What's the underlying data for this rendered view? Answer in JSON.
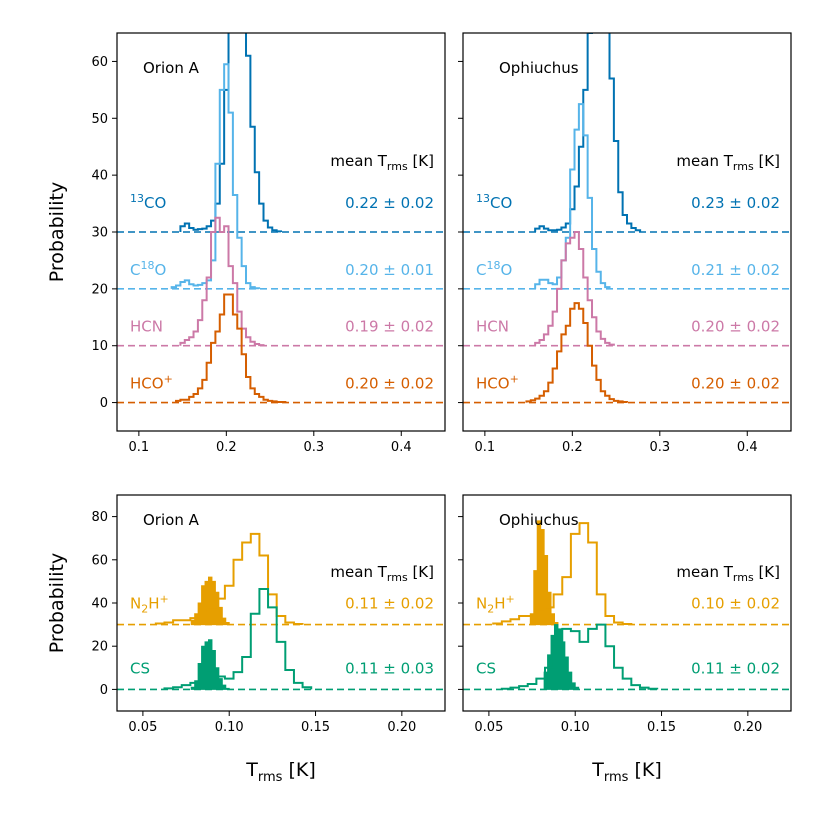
{
  "chart_data": [
    {
      "type": "histogram",
      "id": "top-left",
      "panel_label": "Orion A",
      "ylabel": "Probability",
      "xlim": [
        0.075,
        0.45
      ],
      "ylim": [
        -5,
        65
      ],
      "xticks": [
        0.1,
        0.2,
        0.3,
        0.4
      ],
      "xtick_labels": [
        "0.1",
        "0.2",
        "0.3",
        "0.4"
      ],
      "yticks": [
        0,
        10,
        20,
        30,
        40,
        50,
        60
      ],
      "ytick_labels": [
        "0",
        "10",
        "20",
        "30",
        "40",
        "50",
        "60"
      ],
      "mean_header": {
        "prefix": "mean T",
        "sub": "rms",
        "suffix": " [K]"
      },
      "series": [
        {
          "name": "13CO",
          "label_sup": "13",
          "label_main": "CO",
          "color": "#0072B2",
          "offset": 30,
          "mean_text": "0.22 ± 0.02",
          "style": "step",
          "centers": [
            0.15,
            0.155,
            0.16,
            0.165,
            0.17,
            0.175,
            0.18,
            0.185,
            0.19,
            0.195,
            0.2,
            0.205,
            0.21,
            0.215,
            0.22,
            0.225,
            0.23,
            0.235,
            0.24,
            0.245,
            0.25,
            0.255,
            0.26
          ],
          "heights": [
            1.0,
            1.5,
            0.7,
            0.4,
            0.5,
            0.6,
            1.0,
            2.0,
            5.0,
            12.0,
            25.0,
            45.0,
            61.5,
            60.0,
            45.0,
            31.0,
            18.5,
            10.5,
            5.0,
            2.0,
            0.8,
            0.3,
            0.1
          ]
        },
        {
          "name": "C18O",
          "label_sup": "18",
          "label_main": "O",
          "label_pre": "C",
          "color": "#56B4E9",
          "offset": 20,
          "mean_text": "0.20 ± 0.01",
          "style": "step",
          "centers": [
            0.14,
            0.145,
            0.15,
            0.155,
            0.16,
            0.165,
            0.17,
            0.175,
            0.18,
            0.185,
            0.19,
            0.195,
            0.2,
            0.205,
            0.21,
            0.215,
            0.22,
            0.225,
            0.23,
            0.235
          ],
          "heights": [
            0.3,
            0.6,
            1.2,
            1.5,
            0.8,
            0.6,
            0.7,
            1.0,
            1.5,
            5.0,
            22.0,
            35.0,
            39.5,
            31.0,
            16.5,
            9.0,
            4.0,
            1.0,
            0.3,
            0.1
          ]
        },
        {
          "name": "HCN",
          "label_main": "HCN",
          "color": "#CC79A7",
          "offset": 10,
          "mean_text": "0.19 ± 0.02",
          "style": "step",
          "centers": [
            0.15,
            0.155,
            0.16,
            0.165,
            0.17,
            0.175,
            0.18,
            0.185,
            0.19,
            0.195,
            0.2,
            0.205,
            0.21,
            0.215,
            0.22,
            0.225,
            0.23,
            0.235,
            0.24
          ],
          "heights": [
            0.5,
            1.0,
            1.5,
            2.5,
            4.5,
            8.0,
            12.0,
            20.0,
            22.5,
            20.0,
            21.0,
            14.0,
            11.0,
            6.0,
            3.0,
            1.5,
            0.7,
            0.3,
            0.1
          ]
        },
        {
          "name": "HCO+",
          "label_main": "HCO",
          "label_sup": "+",
          "color": "#D55E00",
          "offset": 0,
          "mean_text": "0.20 ± 0.02",
          "style": "step",
          "centers": [
            0.145,
            0.15,
            0.155,
            0.16,
            0.165,
            0.17,
            0.175,
            0.18,
            0.185,
            0.19,
            0.195,
            0.2,
            0.205,
            0.21,
            0.215,
            0.22,
            0.225,
            0.23,
            0.235,
            0.24,
            0.245,
            0.25,
            0.255,
            0.26,
            0.265
          ],
          "heights": [
            0.3,
            0.5,
            0.5,
            1.0,
            1.5,
            2.5,
            4.0,
            7.0,
            10.5,
            12.5,
            15.5,
            19.0,
            19.0,
            15.5,
            13.0,
            8.5,
            4.5,
            2.5,
            1.5,
            1.0,
            0.5,
            0.3,
            0.2,
            0.1,
            0.1
          ]
        }
      ]
    },
    {
      "type": "histogram",
      "id": "top-right",
      "panel_label": "Ophiuchus",
      "xlim": [
        0.075,
        0.45
      ],
      "ylim": [
        -5,
        65
      ],
      "xticks": [
        0.1,
        0.2,
        0.3,
        0.4
      ],
      "xtick_labels": [
        "0.1",
        "0.2",
        "0.3",
        "0.4"
      ],
      "yticks": [
        0,
        10,
        20,
        30,
        40,
        50,
        60
      ],
      "mean_header": {
        "prefix": "mean T",
        "sub": "rms",
        "suffix": " [K]"
      },
      "series": [
        {
          "name": "13CO",
          "label_sup": "13",
          "label_main": "CO",
          "color": "#0072B2",
          "offset": 30,
          "mean_text": "0.23 ± 0.02",
          "style": "step",
          "centers": [
            0.16,
            0.165,
            0.17,
            0.175,
            0.18,
            0.185,
            0.19,
            0.195,
            0.2,
            0.205,
            0.21,
            0.215,
            0.22,
            0.225,
            0.23,
            0.235,
            0.24,
            0.245,
            0.25,
            0.255,
            0.26,
            0.265,
            0.27,
            0.275
          ],
          "heights": [
            0.6,
            1.0,
            0.6,
            0.3,
            0.3,
            0.4,
            0.8,
            1.5,
            4.0,
            8.0,
            15.0,
            25.0,
            35.0,
            48.0,
            52.5,
            50.0,
            38.0,
            27.0,
            16.0,
            7.0,
            3.0,
            1.5,
            0.7,
            0.3
          ]
        },
        {
          "name": "C18O",
          "label_sup": "18",
          "label_main": "O",
          "label_pre": "C",
          "color": "#56B4E9",
          "offset": 20,
          "mean_text": "0.21 ± 0.02",
          "style": "step",
          "centers": [
            0.16,
            0.165,
            0.17,
            0.175,
            0.18,
            0.185,
            0.19,
            0.195,
            0.2,
            0.205,
            0.21,
            0.215,
            0.22,
            0.225,
            0.23,
            0.235,
            0.24
          ],
          "heights": [
            0.8,
            1.6,
            1.6,
            1.0,
            0.8,
            2.0,
            5.0,
            9.0,
            21.0,
            28.0,
            32.5,
            27.0,
            16.0,
            7.0,
            3.0,
            1.0,
            0.3
          ]
        },
        {
          "name": "HCN",
          "label_main": "HCN",
          "color": "#CC79A7",
          "offset": 10,
          "mean_text": "0.20 ± 0.02",
          "style": "step",
          "centers": [
            0.16,
            0.165,
            0.17,
            0.175,
            0.18,
            0.185,
            0.19,
            0.195,
            0.2,
            0.205,
            0.21,
            0.215,
            0.22,
            0.225,
            0.23,
            0.235,
            0.24,
            0.245
          ],
          "heights": [
            0.5,
            1.0,
            2.0,
            3.5,
            6.0,
            10.0,
            15.0,
            18.0,
            19.0,
            20.0,
            17.0,
            12.0,
            8.0,
            5.0,
            2.5,
            1.2,
            0.5,
            0.2
          ]
        },
        {
          "name": "HCO+",
          "label_main": "HCO",
          "label_sup": "+",
          "color": "#D55E00",
          "offset": 0,
          "mean_text": "0.20 ± 0.02",
          "style": "step",
          "centers": [
            0.15,
            0.155,
            0.16,
            0.165,
            0.17,
            0.175,
            0.18,
            0.185,
            0.19,
            0.195,
            0.2,
            0.205,
            0.21,
            0.215,
            0.22,
            0.225,
            0.23,
            0.235,
            0.24,
            0.245,
            0.25,
            0.255,
            0.26
          ],
          "heights": [
            0.2,
            0.4,
            0.7,
            1.2,
            2.0,
            3.5,
            6.0,
            9.0,
            12.0,
            13.5,
            16.5,
            17.5,
            16.5,
            14.0,
            10.0,
            6.5,
            4.0,
            2.0,
            1.2,
            0.6,
            0.3,
            0.2,
            0.1
          ]
        }
      ]
    },
    {
      "type": "histogram",
      "id": "bottom-left",
      "panel_label": "Orion A",
      "ylabel": "Probability",
      "xlabel": {
        "main": "T",
        "sub": "rms",
        "suffix": " [K]"
      },
      "xlim": [
        0.035,
        0.225
      ],
      "ylim": [
        -10,
        90
      ],
      "xticks": [
        0.05,
        0.1,
        0.15,
        0.2
      ],
      "xtick_labels": [
        "0.05",
        "0.10",
        "0.15",
        "0.20"
      ],
      "yticks": [
        0,
        20,
        40,
        60,
        80
      ],
      "ytick_labels": [
        "0",
        "20",
        "40",
        "60",
        "80"
      ],
      "mean_header": {
        "prefix": "mean T",
        "sub": "rms",
        "suffix": " [K]"
      },
      "series": [
        {
          "name": "N2H+ (filled)",
          "color": "#E69F00",
          "offset": 30,
          "style": "filled",
          "centers": [
            0.079,
            0.081,
            0.083,
            0.085,
            0.087,
            0.089,
            0.091,
            0.093,
            0.095,
            0.097,
            0.099
          ],
          "heights": [
            2.0,
            5.0,
            10.0,
            18.0,
            20.0,
            22.0,
            20.0,
            15.0,
            8.0,
            3.0,
            1.0
          ]
        },
        {
          "name": "N2H+",
          "label_main": "N",
          "label_sub": "2",
          "label_post": "H",
          "label_sup": "+",
          "color": "#E69F00",
          "offset": 30,
          "mean_text": "0.11 ± 0.02",
          "style": "step",
          "centers": [
            0.06,
            0.065,
            0.07,
            0.075,
            0.08,
            0.085,
            0.09,
            0.095,
            0.1,
            0.105,
            0.11,
            0.115,
            0.12,
            0.125,
            0.13,
            0.135,
            0.14
          ],
          "heights": [
            0.5,
            1.0,
            2.0,
            2.0,
            3.0,
            5.0,
            8.0,
            12.0,
            18.0,
            30.0,
            38.0,
            42.0,
            32.0,
            14.0,
            4.0,
            1.0,
            0.3
          ]
        },
        {
          "name": "CS (filled)",
          "color": "#009E73",
          "offset": 0,
          "style": "filled",
          "centers": [
            0.079,
            0.081,
            0.083,
            0.085,
            0.087,
            0.089,
            0.091,
            0.093,
            0.095,
            0.097,
            0.099
          ],
          "heights": [
            1.0,
            4.0,
            12.0,
            20.0,
            22.0,
            23.0,
            18.0,
            10.0,
            5.0,
            2.0,
            0.5
          ]
        },
        {
          "name": "CS",
          "label_main": "CS",
          "color": "#009E73",
          "offset": 0,
          "mean_text": "0.11 ± 0.03",
          "style": "step",
          "centers": [
            0.065,
            0.07,
            0.075,
            0.08,
            0.085,
            0.09,
            0.095,
            0.1,
            0.105,
            0.11,
            0.115,
            0.12,
            0.125,
            0.13,
            0.135,
            0.14,
            0.145
          ],
          "heights": [
            0.5,
            1.0,
            2.0,
            3.0,
            6.0,
            8.0,
            6.0,
            5.0,
            8.0,
            15.0,
            35.0,
            46.5,
            38.0,
            22.0,
            9.0,
            3.0,
            1.0
          ]
        }
      ]
    },
    {
      "type": "histogram",
      "id": "bottom-right",
      "panel_label": "Ophiuchus",
      "xlabel": {
        "main": "T",
        "sub": "rms",
        "suffix": " [K]"
      },
      "xlim": [
        0.035,
        0.225
      ],
      "ylim": [
        -10,
        90
      ],
      "xticks": [
        0.05,
        0.1,
        0.15,
        0.2
      ],
      "xtick_labels": [
        "0.05",
        "0.10",
        "0.15",
        "0.20"
      ],
      "yticks": [
        0,
        20,
        40,
        60,
        80
      ],
      "mean_header": {
        "prefix": "mean T",
        "sub": "rms",
        "suffix": " [K]"
      },
      "series": [
        {
          "name": "N2H+ (filled)",
          "color": "#E69F00",
          "offset": 30,
          "style": "filled",
          "centers": [
            0.075,
            0.077,
            0.079,
            0.081,
            0.083,
            0.085,
            0.087,
            0.089
          ],
          "heights": [
            5.0,
            25.0,
            48.0,
            44.0,
            32.0,
            15.0,
            5.0,
            1.0
          ]
        },
        {
          "name": "N2H+",
          "label_main": "N",
          "label_sub": "2",
          "label_post": "H",
          "label_sup": "+",
          "color": "#E69F00",
          "offset": 30,
          "mean_text": "0.10 ± 0.02",
          "style": "step",
          "centers": [
            0.055,
            0.06,
            0.065,
            0.07,
            0.075,
            0.08,
            0.085,
            0.09,
            0.095,
            0.1,
            0.105,
            0.11,
            0.115,
            0.12,
            0.125,
            0.13
          ],
          "heights": [
            0.5,
            1.5,
            2.5,
            4.0,
            4.0,
            6.0,
            8.0,
            14.0,
            22.0,
            42.0,
            47.0,
            38.0,
            14.0,
            4.0,
            1.0,
            0.3
          ]
        },
        {
          "name": "CS (filled)",
          "color": "#009E73",
          "offset": 0,
          "style": "filled",
          "centers": [
            0.083,
            0.085,
            0.087,
            0.089,
            0.091,
            0.093,
            0.095,
            0.097,
            0.099,
            0.101
          ],
          "heights": [
            8.0,
            16.0,
            25.0,
            30.0,
            28.0,
            22.0,
            15.0,
            8.0,
            3.0,
            1.0
          ]
        },
        {
          "name": "CS",
          "label_main": "CS",
          "color": "#009E73",
          "offset": 0,
          "mean_text": "0.11 ± 0.02",
          "style": "step",
          "centers": [
            0.06,
            0.065,
            0.07,
            0.075,
            0.08,
            0.085,
            0.09,
            0.095,
            0.1,
            0.105,
            0.11,
            0.115,
            0.12,
            0.125,
            0.13,
            0.135,
            0.14,
            0.145
          ],
          "heights": [
            0.3,
            0.8,
            1.5,
            2.5,
            5.0,
            10.0,
            20.0,
            28.0,
            27.0,
            22.0,
            28.0,
            30.0,
            20.0,
            10.0,
            5.0,
            2.0,
            0.8,
            0.3
          ]
        }
      ]
    }
  ]
}
